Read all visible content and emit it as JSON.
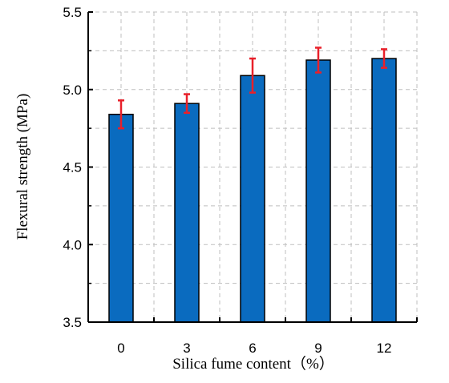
{
  "chart_data": {
    "type": "bar",
    "categories": [
      "0",
      "3",
      "6",
      "9",
      "12"
    ],
    "series": [
      {
        "values": [
          4.84,
          4.91,
          5.09,
          5.19,
          5.2
        ],
        "errors": [
          0.09,
          0.06,
          0.11,
          0.08,
          0.06
        ]
      }
    ],
    "xlabel": "Silica fume content（%）",
    "ylabel": "Flexural strength (MPa)",
    "ylim": [
      3.5,
      5.5
    ],
    "yticks": [
      "3.5",
      "4.0",
      "4.5",
      "5.0",
      "5.5"
    ],
    "grid": true,
    "grid_style": "dashed",
    "colors": {
      "bar": "#0a6bbf",
      "bar_edge": "#000000",
      "error_bar": "#e8202a",
      "grid": "#bfbfbf"
    }
  }
}
